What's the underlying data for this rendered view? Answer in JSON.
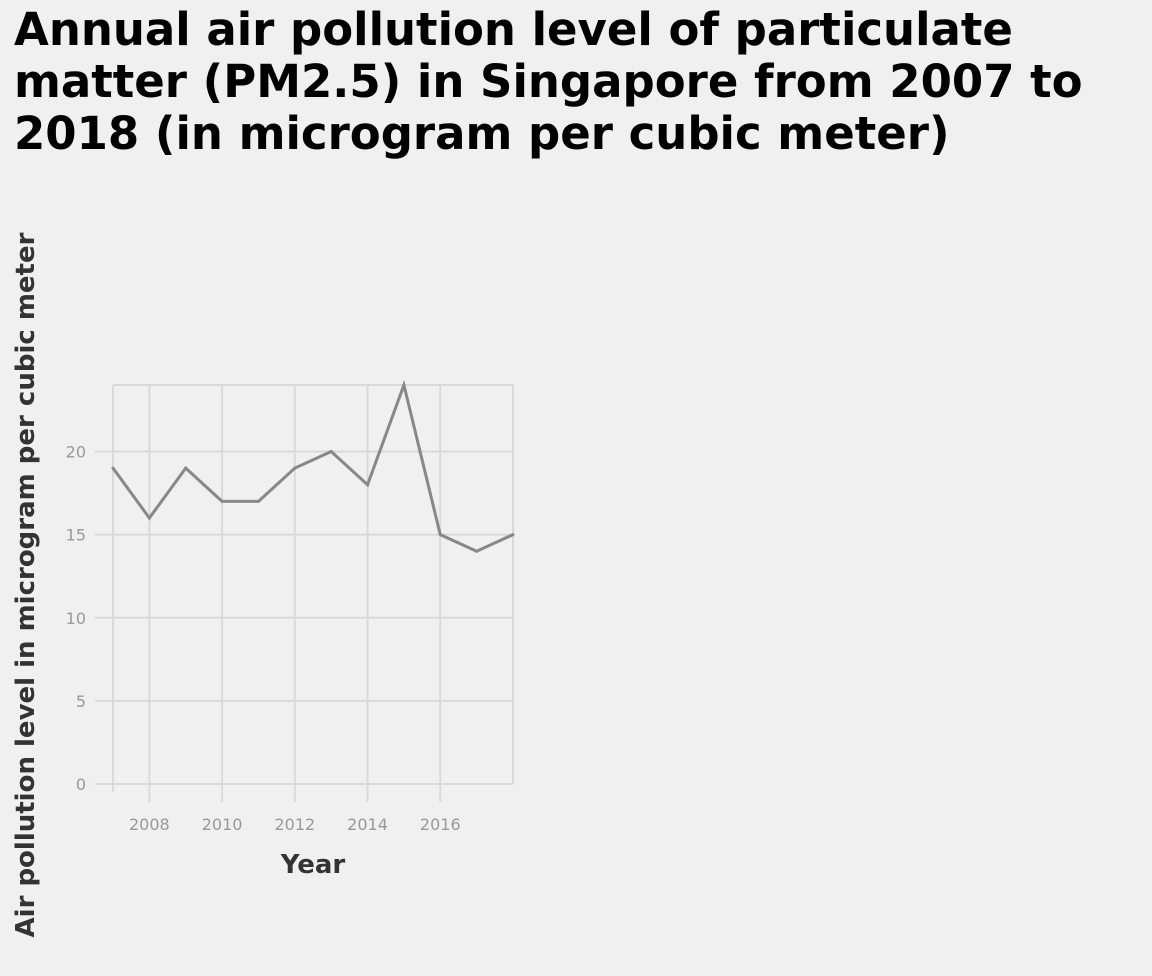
{
  "chart_data": {
    "type": "line",
    "title": "Annual air pollution level of particulate matter (PM2.5) in Singapore from 2007 to 2018 (in microgram per cubic meter)",
    "xlabel": "Year",
    "ylabel": "Air pollution level in microgram per cubic meter",
    "x": [
      2007,
      2008,
      2009,
      2010,
      2011,
      2012,
      2013,
      2014,
      2015,
      2016,
      2017,
      2018
    ],
    "series": [
      {
        "values": [
          19,
          16,
          19,
          17,
          17,
          19,
          20,
          18,
          24,
          15,
          14,
          15
        ]
      }
    ],
    "xlim": [
      2007,
      2018
    ],
    "ylim": [
      0,
      24
    ],
    "x_ticks": [
      2008,
      2010,
      2012,
      2014,
      2016
    ],
    "y_ticks": [
      0,
      5,
      10,
      15,
      20
    ],
    "grid": true,
    "colors": {
      "background": "#f0f0f0",
      "line": "#888888",
      "grid": "#d9d9d9",
      "tick_text": "#999999",
      "axis_label": "#333333",
      "title": "#000000"
    }
  }
}
